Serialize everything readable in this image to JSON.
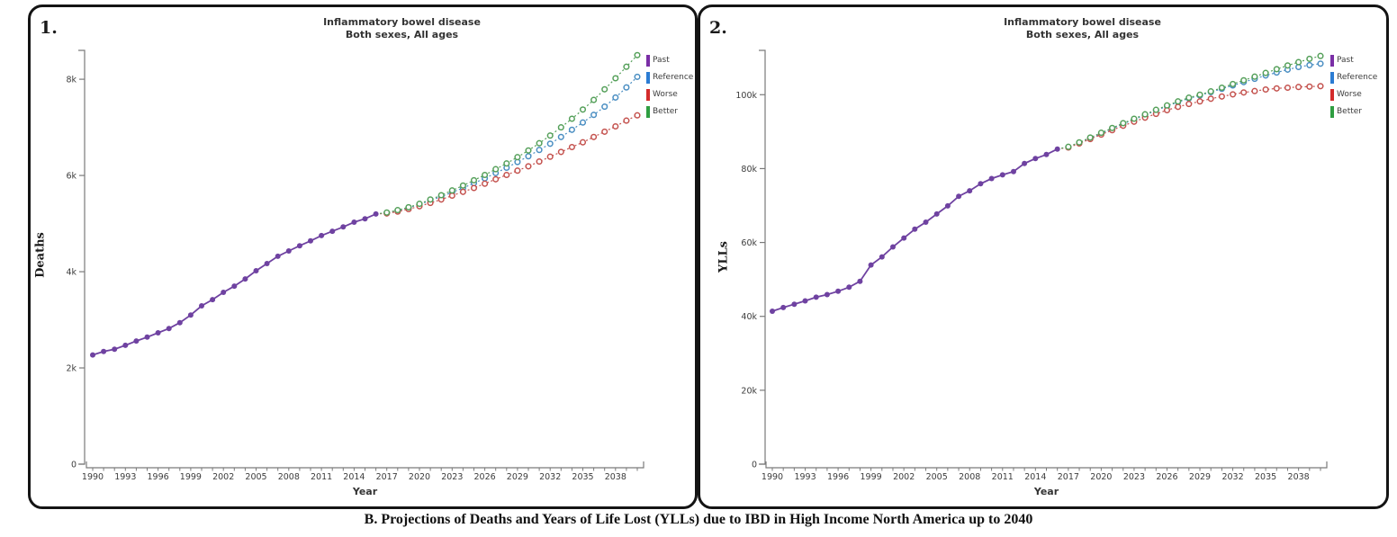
{
  "caption": "B. Projections of Deaths and Years of Life Lost (YLLs) due to IBD  in High Income North America up to 2040",
  "legend": {
    "items": [
      {
        "label": "Past",
        "color": "#7a2ea6"
      },
      {
        "label": "Reference",
        "color": "#2b7cd3"
      },
      {
        "label": "Worse",
        "color": "#d32b2b"
      },
      {
        "label": "Better",
        "color": "#2f9e41"
      }
    ]
  },
  "axis_color": "#7a7a7a",
  "chart_data": [
    {
      "type": "line",
      "panel_number": "1.",
      "title": "Inflammatory bowel disease",
      "subtitle": "Both sexes, All ages",
      "xlabel": "Year",
      "ylabel": "Deaths",
      "x_range": [
        1990,
        2040
      ],
      "x_tick_labels": [
        "1990",
        "1993",
        "1996",
        "1999",
        "2002",
        "2005",
        "2008",
        "2011",
        "2014",
        "2017",
        "2020",
        "2023",
        "2026",
        "2029",
        "2032",
        "2035",
        "2038"
      ],
      "ylim": [
        0,
        8600
      ],
      "y_ticks": [
        {
          "v": 0,
          "label": "0"
        },
        {
          "v": 2000,
          "label": "2k"
        },
        {
          "v": 4000,
          "label": "4k"
        },
        {
          "v": 6000,
          "label": "6k"
        },
        {
          "v": 8000,
          "label": "8k"
        }
      ],
      "grid": false,
      "legend_position": "right",
      "series": [
        {
          "name": "Past",
          "style": "solid",
          "color": "#6f42a1",
          "start_year": 1990,
          "values": [
            2270,
            2340,
            2390,
            2470,
            2560,
            2640,
            2730,
            2820,
            2940,
            3100,
            3290,
            3420,
            3570,
            3700,
            3850,
            4020,
            4170,
            4320,
            4430,
            4540,
            4640,
            4750,
            4840,
            4930,
            5030,
            5100,
            5200
          ]
        },
        {
          "name": "Reference",
          "style": "dashed",
          "color": "#4a8ec2",
          "start_year": 2017,
          "values": [
            5220,
            5270,
            5330,
            5400,
            5480,
            5560,
            5650,
            5740,
            5840,
            5940,
            6050,
            6160,
            6280,
            6400,
            6530,
            6660,
            6800,
            6950,
            7100,
            7260,
            7430,
            7620,
            7830,
            8050
          ]
        },
        {
          "name": "Worse",
          "style": "dashed",
          "color": "#c4524e",
          "start_year": 2017,
          "values": [
            5210,
            5250,
            5300,
            5360,
            5430,
            5500,
            5580,
            5660,
            5740,
            5830,
            5920,
            6010,
            6100,
            6190,
            6290,
            6390,
            6490,
            6590,
            6690,
            6800,
            6910,
            7020,
            7140,
            7250
          ]
        },
        {
          "name": "Better",
          "style": "dashed",
          "color": "#55a05a",
          "start_year": 2017,
          "values": [
            5230,
            5280,
            5340,
            5410,
            5500,
            5590,
            5690,
            5790,
            5900,
            6010,
            6130,
            6250,
            6380,
            6520,
            6670,
            6830,
            7000,
            7180,
            7370,
            7570,
            7790,
            8020,
            8260,
            8500
          ]
        }
      ]
    },
    {
      "type": "line",
      "panel_number": "2.",
      "title": "Inflammatory bowel disease",
      "subtitle": "Both sexes, All ages",
      "xlabel": "Year",
      "ylabel": "YLLs",
      "x_range": [
        1990,
        2040
      ],
      "x_tick_labels": [
        "1990",
        "1993",
        "1996",
        "1999",
        "2002",
        "2005",
        "2008",
        "2011",
        "2014",
        "2017",
        "2020",
        "2023",
        "2026",
        "2029",
        "2032",
        "2035",
        "2038"
      ],
      "ylim": [
        0,
        112000
      ],
      "y_ticks": [
        {
          "v": 0,
          "label": "0"
        },
        {
          "v": 20000,
          "label": "20k"
        },
        {
          "v": 40000,
          "label": "40k"
        },
        {
          "v": 60000,
          "label": "60k"
        },
        {
          "v": 80000,
          "label": "80k"
        },
        {
          "v": 100000,
          "label": "100k"
        }
      ],
      "grid": false,
      "legend_position": "right",
      "series": [
        {
          "name": "Past",
          "style": "solid",
          "color": "#6f42a1",
          "start_year": 1990,
          "values": [
            41400,
            42400,
            43300,
            44200,
            45200,
            45900,
            46800,
            47900,
            49500,
            53900,
            56100,
            58800,
            61200,
            63600,
            65500,
            67700,
            69900,
            72500,
            74000,
            75900,
            77300,
            78300,
            79200,
            81400,
            82700,
            83800,
            85300
          ]
        },
        {
          "name": "Reference",
          "style": "dashed",
          "color": "#4a8ec2",
          "start_year": 2017,
          "values": [
            85800,
            87000,
            88200,
            89500,
            90800,
            92100,
            93300,
            94500,
            95700,
            96900,
            98000,
            99000,
            99800,
            100700,
            101600,
            102500,
            103400,
            104300,
            105200,
            106000,
            106800,
            107500,
            108000,
            108400
          ]
        },
        {
          "name": "Worse",
          "style": "dashed",
          "color": "#c4524e",
          "start_year": 2017,
          "values": [
            85700,
            86800,
            88000,
            89200,
            90400,
            91600,
            92700,
            93800,
            94800,
            95800,
            96700,
            97500,
            98200,
            98900,
            99500,
            100100,
            100600,
            101000,
            101400,
            101700,
            101900,
            102100,
            102200,
            102300
          ]
        },
        {
          "name": "Better",
          "style": "dashed",
          "color": "#55a05a",
          "start_year": 2017,
          "values": [
            85900,
            87100,
            88400,
            89700,
            91000,
            92300,
            93500,
            94700,
            95900,
            97100,
            98200,
            99200,
            100000,
            100900,
            101900,
            102900,
            103900,
            104900,
            105900,
            106900,
            107900,
            108800,
            109700,
            110500
          ]
        }
      ]
    }
  ]
}
